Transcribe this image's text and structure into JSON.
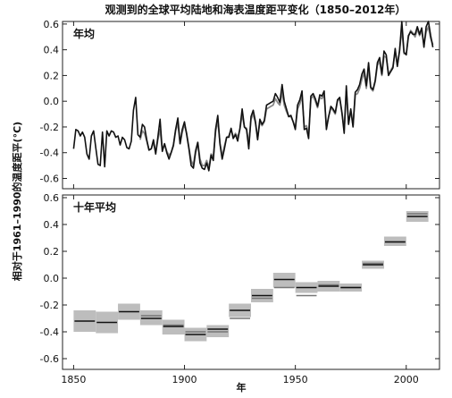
{
  "chart_data": {
    "title": "观测到的全球平均陆地和海表温度距平变化（1850–2012年）",
    "ylabel": "相对于1961–1990的温度距平(°C)",
    "xlabel": "年",
    "xlim": [
      1845,
      2015
    ],
    "xticks": [
      1850,
      1900,
      1950,
      2000
    ],
    "panels": [
      {
        "label": "年均",
        "type": "line",
        "ylim": [
          -0.68,
          0.62
        ],
        "yticks": [
          -0.6,
          -0.4,
          -0.2,
          0.0,
          0.2,
          0.4,
          0.6
        ],
        "ytick_labels": [
          "-0.6",
          "-0.4",
          "-0.2",
          "0.0",
          "0.2",
          "0.4",
          "0.6"
        ],
        "series": [
          {
            "color": "#111111",
            "x": [
              1850,
              1851,
              1852,
              1853,
              1854,
              1855,
              1856,
              1857,
              1858,
              1859,
              1860,
              1861,
              1862,
              1863,
              1864,
              1865,
              1866,
              1867,
              1868,
              1869,
              1870,
              1871,
              1872,
              1873,
              1874,
              1875,
              1876,
              1877,
              1878,
              1879,
              1880,
              1881,
              1882,
              1883,
              1884,
              1885,
              1886,
              1887,
              1888,
              1889,
              1890,
              1891,
              1892,
              1893,
              1894,
              1895,
              1896,
              1897,
              1898,
              1899,
              1900,
              1901,
              1902,
              1903,
              1904,
              1905,
              1906,
              1907,
              1908,
              1909,
              1910,
              1911,
              1912,
              1913,
              1914,
              1915,
              1916,
              1917,
              1918,
              1919,
              1920,
              1921,
              1922,
              1923,
              1924,
              1925,
              1926,
              1927,
              1928,
              1929,
              1930,
              1931,
              1932,
              1933,
              1934,
              1935,
              1936,
              1937,
              1938,
              1939,
              1940,
              1941,
              1942,
              1943,
              1944,
              1945,
              1946,
              1947,
              1948,
              1949,
              1950,
              1951,
              1952,
              1953,
              1954,
              1955,
              1956,
              1957,
              1958,
              1959,
              1960,
              1961,
              1962,
              1963,
              1964,
              1965,
              1966,
              1967,
              1968,
              1969,
              1970,
              1971,
              1972,
              1973,
              1974,
              1975,
              1976,
              1977,
              1978,
              1979,
              1980,
              1981,
              1982,
              1983,
              1984,
              1985,
              1986,
              1987,
              1988,
              1989,
              1990,
              1991,
              1992,
              1993,
              1994,
              1995,
              1996,
              1997,
              1998,
              1999,
              2000,
              2001,
              2002,
              2003,
              2004,
              2005,
              2006,
              2007,
              2008,
              2009,
              2010,
              2011,
              2012
            ],
            "y": [
              -0.37,
              -0.22,
              -0.23,
              -0.27,
              -0.24,
              -0.28,
              -0.41,
              -0.45,
              -0.27,
              -0.23,
              -0.36,
              -0.49,
              -0.5,
              -0.24,
              -0.51,
              -0.23,
              -0.27,
              -0.23,
              -0.24,
              -0.28,
              -0.27,
              -0.34,
              -0.28,
              -0.3,
              -0.36,
              -0.37,
              -0.31,
              -0.07,
              0.03,
              -0.26,
              -0.28,
              -0.18,
              -0.2,
              -0.3,
              -0.38,
              -0.37,
              -0.3,
              -0.41,
              -0.28,
              -0.14,
              -0.39,
              -0.33,
              -0.4,
              -0.45,
              -0.4,
              -0.34,
              -0.22,
              -0.13,
              -0.33,
              -0.22,
              -0.16,
              -0.26,
              -0.37,
              -0.5,
              -0.52,
              -0.4,
              -0.32,
              -0.48,
              -0.52,
              -0.53,
              -0.48,
              -0.54,
              -0.42,
              -0.46,
              -0.22,
              -0.11,
              -0.33,
              -0.45,
              -0.37,
              -0.28,
              -0.28,
              -0.21,
              -0.29,
              -0.26,
              -0.31,
              -0.21,
              -0.06,
              -0.2,
              -0.22,
              -0.37,
              -0.12,
              -0.07,
              -0.16,
              -0.3,
              -0.14,
              -0.18,
              -0.15,
              -0.03,
              -0.02,
              -0.01,
              0.0,
              0.06,
              0.03,
              -0.01,
              0.13,
              0.0,
              -0.06,
              -0.12,
              -0.11,
              -0.16,
              -0.22,
              -0.03,
              0.01,
              0.08,
              -0.22,
              -0.21,
              -0.29,
              0.04,
              0.06,
              0.02,
              -0.04,
              0.05,
              0.04,
              0.08,
              -0.22,
              -0.12,
              -0.04,
              -0.06,
              -0.09,
              0.01,
              0.03,
              -0.09,
              -0.25,
              0.12,
              -0.18,
              -0.06,
              -0.2,
              0.07,
              0.09,
              0.13,
              0.21,
              0.25,
              0.12,
              0.3,
              0.11,
              0.09,
              0.16,
              0.3,
              0.34,
              0.21,
              0.39,
              0.36,
              0.2,
              0.23,
              0.26,
              0.41,
              0.27,
              0.39,
              0.62,
              0.38,
              0.36,
              0.51,
              0.54,
              0.52,
              0.52,
              0.58,
              0.52,
              0.57,
              0.42,
              0.58,
              0.62,
              0.51,
              0.42
            ]
          },
          {
            "color": "#888888",
            "x": [
              1880,
              1881,
              1882,
              1883,
              1884,
              1885,
              1886,
              1887,
              1888,
              1889,
              1890,
              1891,
              1892,
              1893,
              1894,
              1895,
              1896,
              1897,
              1898,
              1899,
              1900,
              1901,
              1902,
              1903,
              1904,
              1905,
              1906,
              1907,
              1908,
              1909,
              1910,
              1911,
              1912,
              1913,
              1914,
              1915,
              1916,
              1917,
              1918,
              1919,
              1920,
              1921,
              1922,
              1923,
              1924,
              1925,
              1926,
              1927,
              1928,
              1929,
              1930,
              1931,
              1932,
              1933,
              1934,
              1935,
              1936,
              1937,
              1938,
              1939,
              1940,
              1941,
              1942,
              1943,
              1944,
              1945,
              1946,
              1947,
              1948,
              1949,
              1950,
              1951,
              1952,
              1953,
              1954,
              1955,
              1956,
              1957,
              1958,
              1959,
              1960,
              1961,
              1962,
              1963,
              1964,
              1965,
              1966,
              1967,
              1968,
              1969,
              1970,
              1971,
              1972,
              1973,
              1974,
              1975,
              1976,
              1977,
              1978,
              1979,
              1980,
              1981,
              1982,
              1983,
              1984,
              1985,
              1986,
              1987,
              1988,
              1989,
              1990,
              1991,
              1992,
              1993,
              1994,
              1995,
              1996,
              1997,
              1998,
              1999,
              2000,
              2001,
              2002,
              2003,
              2004,
              2005,
              2006,
              2007,
              2008,
              2009,
              2010,
              2011,
              2012
            ],
            "y": [
              -0.3,
              -0.23,
              -0.25,
              -0.31,
              -0.38,
              -0.37,
              -0.32,
              -0.4,
              -0.3,
              -0.22,
              -0.38,
              -0.33,
              -0.39,
              -0.42,
              -0.4,
              -0.35,
              -0.23,
              -0.17,
              -0.33,
              -0.24,
              -0.18,
              -0.25,
              -0.36,
              -0.46,
              -0.5,
              -0.38,
              -0.32,
              -0.45,
              -0.5,
              -0.5,
              -0.46,
              -0.52,
              -0.41,
              -0.43,
              -0.24,
              -0.15,
              -0.32,
              -0.43,
              -0.35,
              -0.28,
              -0.27,
              -0.22,
              -0.28,
              -0.25,
              -0.28,
              -0.22,
              -0.1,
              -0.2,
              -0.21,
              -0.34,
              -0.14,
              -0.1,
              -0.17,
              -0.29,
              -0.16,
              -0.19,
              -0.16,
              -0.06,
              -0.05,
              -0.04,
              -0.03,
              0.02,
              -0.01,
              -0.03,
              0.07,
              -0.03,
              -0.08,
              -0.12,
              -0.12,
              -0.16,
              -0.21,
              -0.06,
              -0.02,
              0.04,
              -0.2,
              -0.19,
              -0.26,
              0.02,
              0.04,
              0.0,
              -0.05,
              0.03,
              0.02,
              0.05,
              -0.2,
              -0.12,
              -0.05,
              -0.07,
              -0.1,
              0.0,
              0.02,
              -0.09,
              -0.22,
              0.08,
              -0.17,
              -0.08,
              -0.19,
              0.05,
              0.06,
              0.1,
              0.17,
              0.22,
              0.1,
              0.26,
              0.1,
              0.08,
              0.15,
              0.28,
              0.31,
              0.2,
              0.35,
              0.34,
              0.21,
              0.24,
              0.27,
              0.39,
              0.28,
              0.4,
              0.56,
              0.37,
              0.37,
              0.5,
              0.55,
              0.53,
              0.5,
              0.56,
              0.51,
              0.55,
              0.44,
              0.54,
              0.58,
              0.49,
              0.44
            ]
          }
        ]
      },
      {
        "label": "十年平均",
        "type": "bar-range",
        "ylim": [
          -0.68,
          0.62
        ],
        "yticks": [
          -0.6,
          -0.4,
          -0.2,
          0.0,
          0.2,
          0.4,
          0.6
        ],
        "ytick_labels": [
          "-0.6",
          "-0.4",
          "-0.2",
          "0.0",
          "0.2",
          "0.4",
          "0.6"
        ],
        "decades": [
          {
            "start": 1850,
            "end": 1860,
            "mean": -0.32,
            "low": -0.4,
            "high": -0.24,
            "alt": null
          },
          {
            "start": 1860,
            "end": 1870,
            "mean": -0.33,
            "low": -0.41,
            "high": -0.25,
            "alt": null
          },
          {
            "start": 1870,
            "end": 1880,
            "mean": -0.25,
            "low": -0.31,
            "high": -0.19,
            "alt": null
          },
          {
            "start": 1880,
            "end": 1890,
            "mean": -0.3,
            "low": -0.35,
            "high": -0.24,
            "alt": -0.28
          },
          {
            "start": 1890,
            "end": 1900,
            "mean": -0.36,
            "low": -0.42,
            "high": -0.31,
            "alt": -0.35
          },
          {
            "start": 1900,
            "end": 1910,
            "mean": -0.42,
            "low": -0.47,
            "high": -0.37,
            "alt": -0.4
          },
          {
            "start": 1910,
            "end": 1920,
            "mean": -0.38,
            "low": -0.44,
            "high": -0.35,
            "alt": -0.4
          },
          {
            "start": 1920,
            "end": 1930,
            "mean": -0.24,
            "low": -0.29,
            "high": -0.19,
            "alt": -0.3
          },
          {
            "start": 1930,
            "end": 1940,
            "mean": -0.13,
            "low": -0.18,
            "high": -0.08,
            "alt": -0.15
          },
          {
            "start": 1940,
            "end": 1950,
            "mean": -0.01,
            "low": -0.07,
            "high": 0.04,
            "alt": -0.07
          },
          {
            "start": 1950,
            "end": 1960,
            "mean": -0.07,
            "low": -0.11,
            "high": -0.03,
            "alt": -0.13
          },
          {
            "start": 1960,
            "end": 1970,
            "mean": -0.06,
            "low": -0.1,
            "high": -0.02,
            "alt": -0.05
          },
          {
            "start": 1970,
            "end": 1980,
            "mean": -0.07,
            "low": -0.1,
            "high": -0.04,
            "alt": -0.07
          },
          {
            "start": 1980,
            "end": 1990,
            "mean": 0.1,
            "low": 0.07,
            "high": 0.13,
            "alt": 0.11
          },
          {
            "start": 1990,
            "end": 2000,
            "mean": 0.27,
            "low": 0.24,
            "high": 0.31,
            "alt": 0.27
          },
          {
            "start": 2000,
            "end": 2010,
            "mean": 0.46,
            "low": 0.42,
            "high": 0.5,
            "alt": 0.48
          }
        ]
      }
    ],
    "colors": {
      "dark": "#111111",
      "mid": "#888888",
      "band": "#bdbdbd",
      "axis": "#222222"
    }
  }
}
